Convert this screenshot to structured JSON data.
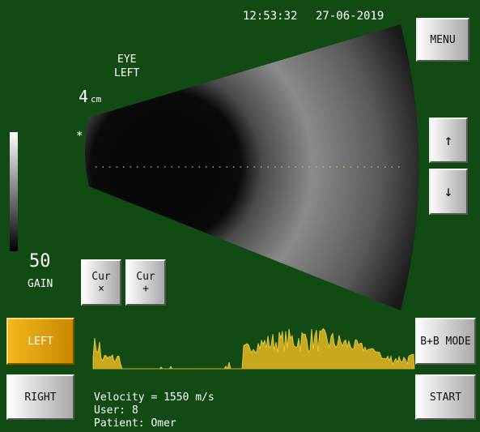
{
  "header": {
    "time": "12:53:32",
    "date": "27-06-2019"
  },
  "scan": {
    "eye_label": "EYE",
    "side_label": "LEFT",
    "depth": "4",
    "depth_unit": "cm",
    "marker": "*"
  },
  "gain": {
    "value": "50",
    "label": "GAIN"
  },
  "buttons": {
    "menu": "MENU",
    "up": "↑",
    "down": "↓",
    "cur_x": {
      "line1": "Cur",
      "line2": "×"
    },
    "cur_plus": {
      "line1": "Cur",
      "line2": "+"
    },
    "left": "LEFT",
    "right": "RIGHT",
    "mode": "B+B MODE",
    "start": "START"
  },
  "info": {
    "velocity": "Velocity = 1550 m/s",
    "user": "User: 8",
    "patient": "Patient: Omer"
  }
}
